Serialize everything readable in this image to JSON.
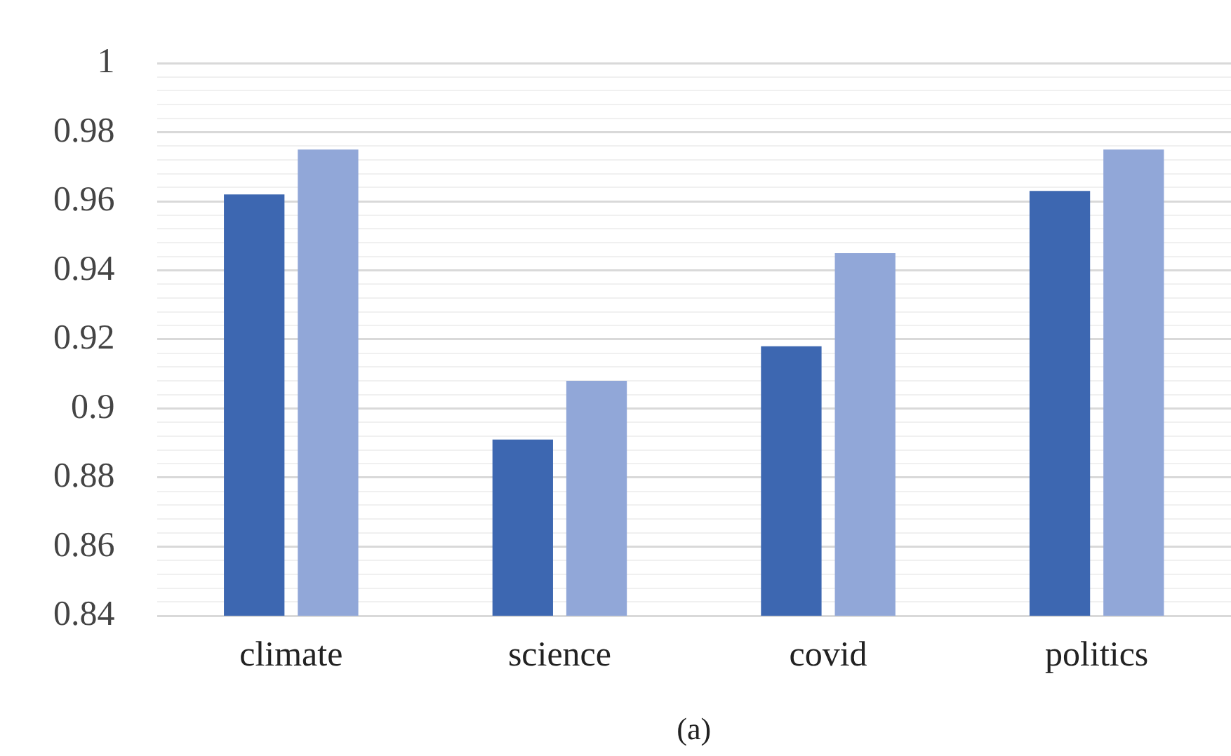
{
  "chart_data": {
    "type": "bar",
    "categories": [
      "climate",
      "science",
      "covid",
      "politics"
    ],
    "series": [
      {
        "color": "#3d67b1",
        "values": [
          0.962,
          0.891,
          0.918,
          0.963
        ]
      },
      {
        "color": "#91a7d8",
        "values": [
          0.975,
          0.908,
          0.945,
          0.975
        ]
      }
    ],
    "ylim": [
      0.84,
      1
    ],
    "yticks": [
      0.84,
      {
        "value": 0.844,
        "label": null
      },
      {
        "value": 0.848,
        "label": null
      },
      {
        "value": 0.852,
        "label": null
      },
      {
        "value": 0.856,
        "label": null
      },
      0.86,
      {
        "value": 0.864,
        "label": null
      },
      {
        "value": 0.868,
        "label": null
      },
      {
        "value": 0.872,
        "label": null
      },
      {
        "value": 0.876,
        "label": null
      },
      0.88,
      {
        "value": 0.884,
        "label": null
      },
      {
        "value": 0.888,
        "label": null
      },
      {
        "value": 0.892,
        "label": null
      },
      {
        "value": 0.896,
        "label": null
      },
      0.9,
      {
        "value": 0.904,
        "label": null
      },
      {
        "value": 0.908,
        "label": null
      },
      {
        "value": 0.912,
        "label": null
      },
      {
        "value": 0.916,
        "label": null
      },
      0.92,
      {
        "value": 0.924,
        "label": null
      },
      {
        "value": 0.928,
        "label": null
      },
      {
        "value": 0.932,
        "label": null
      },
      {
        "value": 0.936,
        "label": null
      },
      0.94,
      {
        "value": 0.944,
        "label": null
      },
      {
        "value": 0.948,
        "label": null
      },
      {
        "value": 0.952,
        "label": null
      },
      {
        "value": 0.956,
        "label": null
      },
      0.96,
      {
        "value": 0.964,
        "label": null
      },
      {
        "value": 0.968,
        "label": null
      },
      {
        "value": 0.972,
        "label": null
      },
      {
        "value": 0.976,
        "label": null
      },
      0.98,
      {
        "value": 0.984,
        "label": null
      },
      {
        "value": 0.988,
        "label": null
      },
      {
        "value": 0.992,
        "label": null
      },
      {
        "value": 0.996,
        "label": null
      },
      1
    ],
    "grid": "y",
    "legend": false,
    "annotations": [
      "(a)"
    ]
  }
}
